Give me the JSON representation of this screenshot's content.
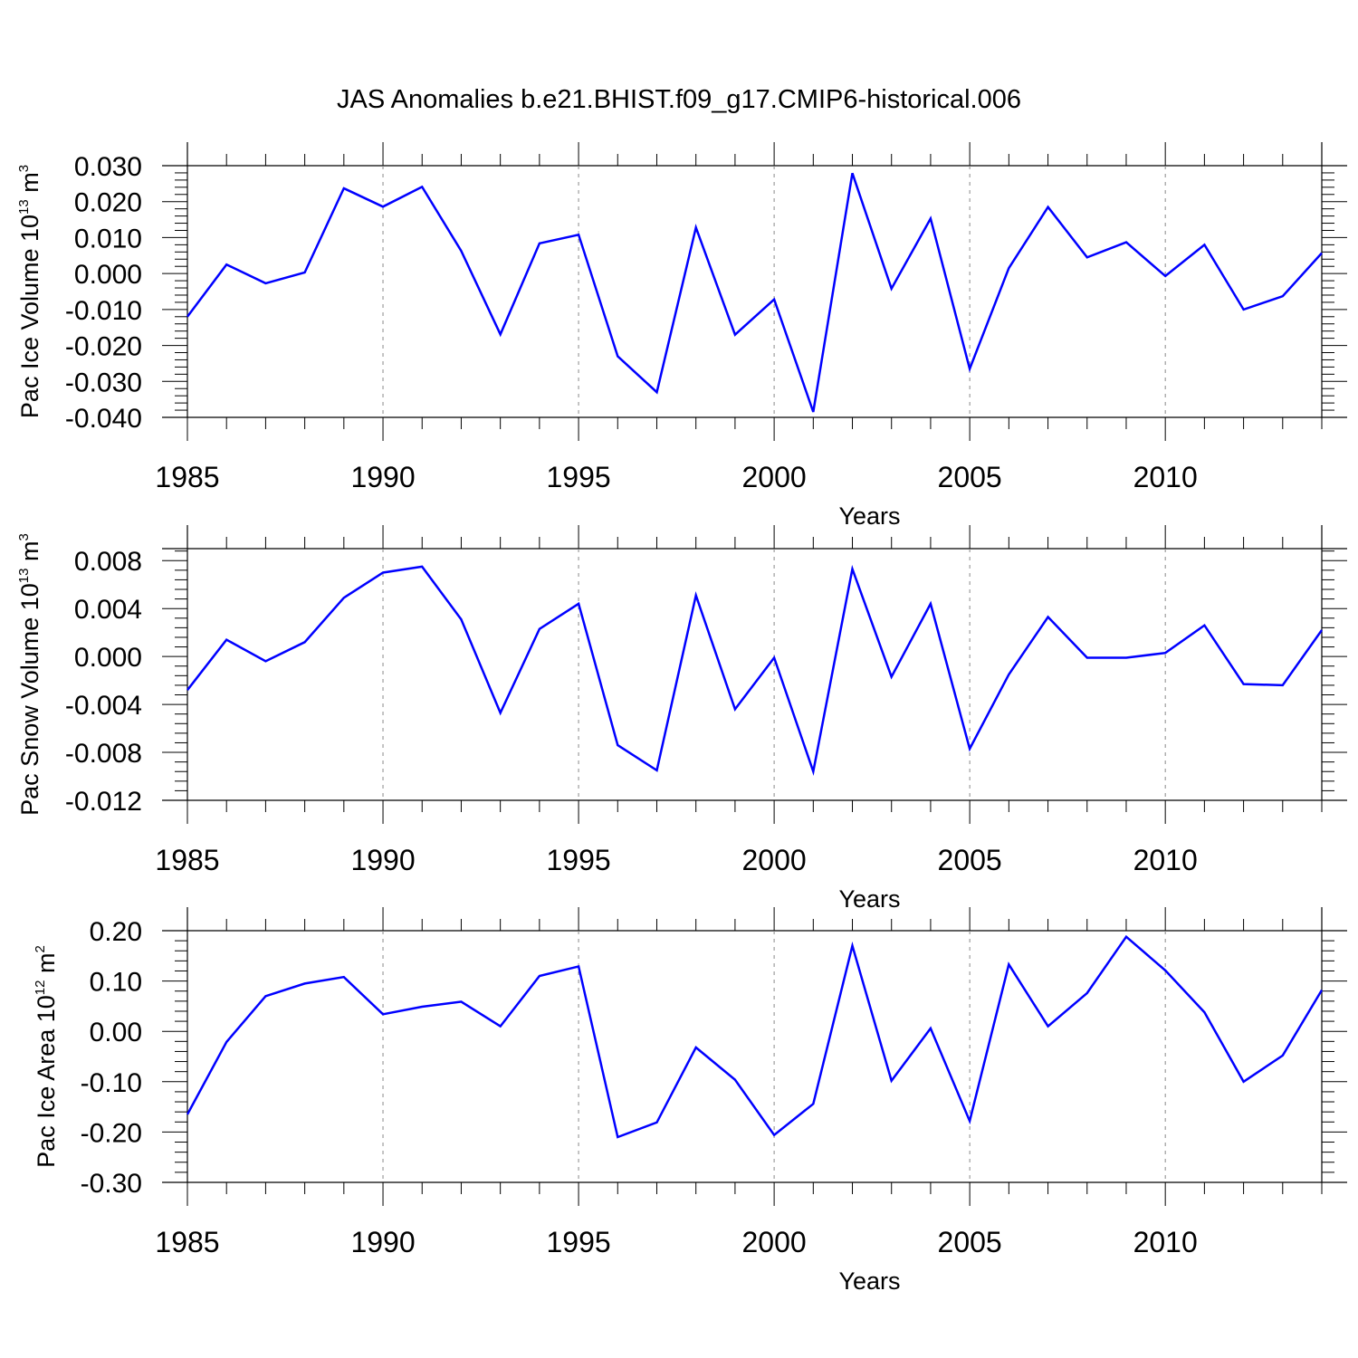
{
  "title": "JAS Anomalies b.e21.BHIST.f09_g17.CMIP6-historical.006",
  "colors": {
    "line": "#0000ff",
    "axes": "#000000",
    "refline": "#888888"
  },
  "chart_data": [
    {
      "type": "line",
      "ylabel": {
        "text": "Pac Ice Volume 10",
        "exp": "13",
        "unit": " m",
        "unit_exp": "3"
      },
      "xlabel": "Years",
      "xlim": [
        1985,
        2014
      ],
      "ylim": [
        -0.04,
        0.03
      ],
      "yticks": [
        0.03,
        0.02,
        0.01,
        0.0,
        -0.01,
        -0.02,
        -0.03,
        -0.04
      ],
      "ytick_labels": [
        "0.030",
        "0.020",
        "0.010",
        "0.000",
        "-0.010",
        "-0.020",
        "-0.030",
        "-0.040"
      ],
      "xticks": [
        1985,
        1990,
        1995,
        2000,
        2005,
        2010
      ],
      "xtick_labels": [
        "1985",
        "1990",
        "1995",
        "2000",
        "2005",
        "2010"
      ],
      "grid": "dashed vertical lines at 1990, 1995, 2000, 2005, 2010",
      "x": [
        1985,
        1986,
        1987,
        1988,
        1989,
        1990,
        1991,
        1992,
        1993,
        1994,
        1995,
        1996,
        1997,
        1998,
        1999,
        2000,
        2001,
        2002,
        2003,
        2004,
        2005,
        2006,
        2007,
        2008,
        2009,
        2010,
        2011,
        2012,
        2013,
        2014
      ],
      "values": [
        -0.012,
        0.0025,
        -0.0027,
        0.0003,
        0.0237,
        0.0186,
        0.0241,
        0.0063,
        -0.0169,
        0.0084,
        0.0108,
        -0.023,
        -0.033,
        0.0128,
        -0.017,
        -0.0072,
        -0.0385,
        0.0279,
        -0.0042,
        0.0153,
        -0.0265,
        0.0015,
        0.0185,
        0.0045,
        0.0087,
        -0.0007,
        0.008,
        -0.01,
        -0.0063,
        0.0057
      ]
    },
    {
      "type": "line",
      "ylabel": {
        "text": "Pac Snow Volume 10",
        "exp": "13",
        "unit": " m",
        "unit_exp": "3"
      },
      "xlabel": "Years",
      "xlim": [
        1985,
        2014
      ],
      "ylim": [
        -0.012,
        0.009
      ],
      "yticks": [
        0.008,
        0.004,
        0.0,
        -0.004,
        -0.008,
        -0.012
      ],
      "ytick_labels": [
        "0.008",
        "0.004",
        "0.000",
        "-0.004",
        "-0.008",
        "-0.012"
      ],
      "xticks": [
        1985,
        1990,
        1995,
        2000,
        2005,
        2010
      ],
      "xtick_labels": [
        "1985",
        "1990",
        "1995",
        "2000",
        "2005",
        "2010"
      ],
      "grid": "dashed vertical lines at 1990, 1995, 2000, 2005, 2010",
      "x": [
        1985,
        1986,
        1987,
        1988,
        1989,
        1990,
        1991,
        1992,
        1993,
        1994,
        1995,
        1996,
        1997,
        1998,
        1999,
        2000,
        2001,
        2002,
        2003,
        2004,
        2005,
        2006,
        2007,
        2008,
        2009,
        2010,
        2011,
        2012,
        2013,
        2014
      ],
      "values": [
        -0.0028,
        0.0014,
        -0.0004,
        0.0012,
        0.0049,
        0.007,
        0.0075,
        0.0031,
        -0.0047,
        0.0023,
        0.0044,
        -0.0074,
        -0.0095,
        0.0051,
        -0.0044,
        -0.0001,
        -0.0096,
        0.0073,
        -0.0017,
        0.0044,
        -0.0077,
        -0.0015,
        0.0033,
        -0.0001,
        -0.0001,
        0.0003,
        0.0026,
        -0.0023,
        -0.0024,
        0.0022
      ]
    },
    {
      "type": "line",
      "ylabel": {
        "text": "Pac Ice Area 10",
        "exp": "12",
        "unit": " m",
        "unit_exp": "2"
      },
      "xlabel": "Years",
      "xlim": [
        1985,
        2014
      ],
      "ylim": [
        -0.3,
        0.2
      ],
      "yticks": [
        0.2,
        0.1,
        0.0,
        -0.1,
        -0.2,
        -0.3
      ],
      "ytick_labels": [
        "0.20",
        "0.10",
        "0.00",
        "-0.10",
        "-0.20",
        "-0.30"
      ],
      "xticks": [
        1985,
        1990,
        1995,
        2000,
        2005,
        2010
      ],
      "xtick_labels": [
        "1985",
        "1990",
        "1995",
        "2000",
        "2005",
        "2010"
      ],
      "grid": "dashed vertical lines at 1990, 1995, 2000, 2005, 2010",
      "x": [
        1985,
        1986,
        1987,
        1988,
        1989,
        1990,
        1991,
        1992,
        1993,
        1994,
        1995,
        1996,
        1997,
        1998,
        1999,
        2000,
        2001,
        2002,
        2003,
        2004,
        2005,
        2006,
        2007,
        2008,
        2009,
        2010,
        2011,
        2012,
        2013,
        2014
      ],
      "values": [
        -0.165,
        -0.021,
        0.07,
        0.095,
        0.108,
        0.034,
        0.049,
        0.059,
        0.01,
        0.11,
        0.129,
        -0.21,
        -0.181,
        -0.032,
        -0.096,
        -0.206,
        -0.144,
        0.17,
        -0.098,
        0.006,
        -0.178,
        0.133,
        0.01,
        0.076,
        0.188,
        0.121,
        0.038,
        -0.1,
        -0.048,
        0.082
      ]
    }
  ]
}
